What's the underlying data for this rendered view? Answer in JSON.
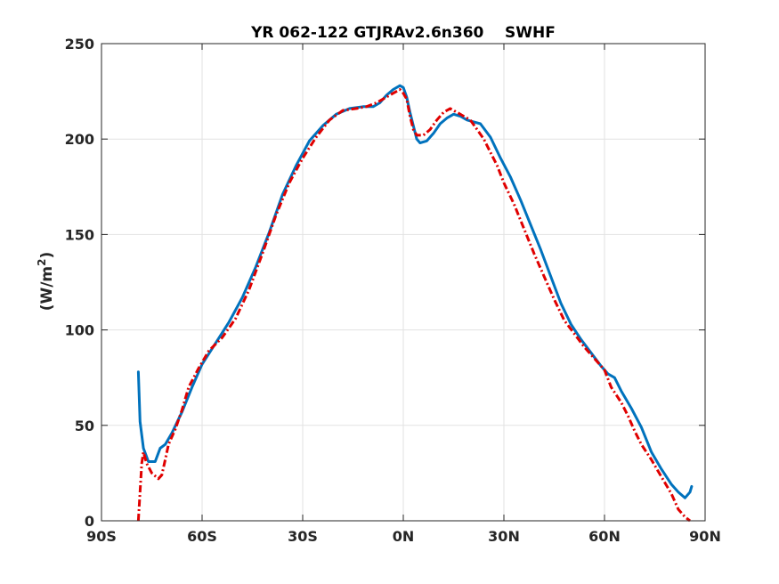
{
  "chart_data": {
    "type": "line",
    "title": "YR 062-122 GTJRAv2.6n360    SWHF",
    "xlabel": "",
    "ylabel": "(W/m²)",
    "xlim": [
      -90,
      90
    ],
    "ylim": [
      0,
      250
    ],
    "xticks": [
      -90,
      -60,
      -30,
      0,
      30,
      60,
      90
    ],
    "xtick_labels": [
      "90S",
      "60S",
      "30S",
      "0N",
      "30N",
      "60N",
      "90N"
    ],
    "yticks": [
      0,
      50,
      100,
      150,
      200,
      250
    ],
    "ytick_labels": [
      "0",
      "50",
      "100",
      "150",
      "200",
      "250"
    ],
    "grid": true,
    "series": [
      {
        "color": "#0072BD",
        "style": "solid",
        "points": [
          [
            -79,
            78
          ],
          [
            -78.5,
            52
          ],
          [
            -77.5,
            38
          ],
          [
            -76,
            31
          ],
          [
            -74,
            31
          ],
          [
            -72.5,
            38
          ],
          [
            -71,
            40
          ],
          [
            -69,
            46
          ],
          [
            -66,
            57
          ],
          [
            -63,
            70
          ],
          [
            -60,
            82
          ],
          [
            -56,
            93
          ],
          [
            -52,
            104
          ],
          [
            -48,
            117
          ],
          [
            -44,
            133
          ],
          [
            -40,
            151
          ],
          [
            -36,
            171
          ],
          [
            -32,
            186
          ],
          [
            -28,
            199
          ],
          [
            -24,
            207
          ],
          [
            -20,
            213
          ],
          [
            -16,
            216
          ],
          [
            -12,
            217
          ],
          [
            -9,
            217
          ],
          [
            -7,
            219
          ],
          [
            -5,
            223
          ],
          [
            -3,
            226
          ],
          [
            -1,
            228
          ],
          [
            0,
            227
          ],
          [
            1,
            222
          ],
          [
            2,
            214
          ],
          [
            3,
            207
          ],
          [
            4,
            200
          ],
          [
            5,
            198
          ],
          [
            7,
            199
          ],
          [
            9,
            203
          ],
          [
            11,
            208
          ],
          [
            13,
            211
          ],
          [
            15,
            213
          ],
          [
            17,
            212
          ],
          [
            19,
            210
          ],
          [
            21,
            209
          ],
          [
            23,
            208
          ],
          [
            26,
            201
          ],
          [
            29,
            190
          ],
          [
            32,
            180
          ],
          [
            35,
            168
          ],
          [
            38,
            155
          ],
          [
            41,
            142
          ],
          [
            44,
            128
          ],
          [
            47,
            114
          ],
          [
            50,
            103
          ],
          [
            53,
            95
          ],
          [
            56,
            88
          ],
          [
            59,
            81
          ],
          [
            61,
            77
          ],
          [
            63,
            75
          ],
          [
            65,
            68
          ],
          [
            68,
            59
          ],
          [
            71,
            49
          ],
          [
            74,
            36
          ],
          [
            77,
            27
          ],
          [
            80,
            19
          ],
          [
            82,
            15
          ],
          [
            84,
            12
          ],
          [
            85.5,
            15
          ],
          [
            86,
            18
          ]
        ]
      },
      {
        "color": "#E00000",
        "style": "dash-dot",
        "points": [
          [
            -79,
            0
          ],
          [
            -78.5,
            15
          ],
          [
            -78,
            30
          ],
          [
            -77.5,
            36
          ],
          [
            -76.5,
            30
          ],
          [
            -75,
            25
          ],
          [
            -73,
            22
          ],
          [
            -72,
            24
          ],
          [
            -71,
            32
          ],
          [
            -70,
            40
          ],
          [
            -68,
            48
          ],
          [
            -66,
            58
          ],
          [
            -64,
            70
          ],
          [
            -61,
            80
          ],
          [
            -58,
            89
          ],
          [
            -54,
            96
          ],
          [
            -50,
            106
          ],
          [
            -46,
            121
          ],
          [
            -42,
            140
          ],
          [
            -38,
            160
          ],
          [
            -34,
            177
          ],
          [
            -30,
            190
          ],
          [
            -26,
            201
          ],
          [
            -22,
            210
          ],
          [
            -18,
            215
          ],
          [
            -14,
            216
          ],
          [
            -11,
            217
          ],
          [
            -8,
            219
          ],
          [
            -5,
            222
          ],
          [
            -3,
            224
          ],
          [
            -1,
            226
          ],
          [
            0,
            224
          ],
          [
            1,
            221
          ],
          [
            2,
            212
          ],
          [
            3,
            205
          ],
          [
            4,
            202
          ],
          [
            6,
            202
          ],
          [
            8,
            205
          ],
          [
            10,
            210
          ],
          [
            12,
            214
          ],
          [
            14,
            216
          ],
          [
            16,
            214
          ],
          [
            18,
            212
          ],
          [
            20,
            210
          ],
          [
            22,
            205
          ],
          [
            24,
            200
          ],
          [
            26,
            193
          ],
          [
            28,
            186
          ],
          [
            30,
            177
          ],
          [
            33,
            166
          ],
          [
            36,
            153
          ],
          [
            39,
            140
          ],
          [
            42,
            128
          ],
          [
            45,
            116
          ],
          [
            48,
            105
          ],
          [
            51,
            98
          ],
          [
            54,
            91
          ],
          [
            57,
            85
          ],
          [
            60,
            79
          ],
          [
            62,
            70
          ],
          [
            65,
            62
          ],
          [
            67,
            55
          ],
          [
            69,
            47
          ],
          [
            71,
            40
          ],
          [
            74,
            32
          ],
          [
            77,
            23
          ],
          [
            80,
            14
          ],
          [
            82,
            6
          ],
          [
            84,
            2
          ],
          [
            85.5,
            0
          ]
        ]
      }
    ]
  }
}
